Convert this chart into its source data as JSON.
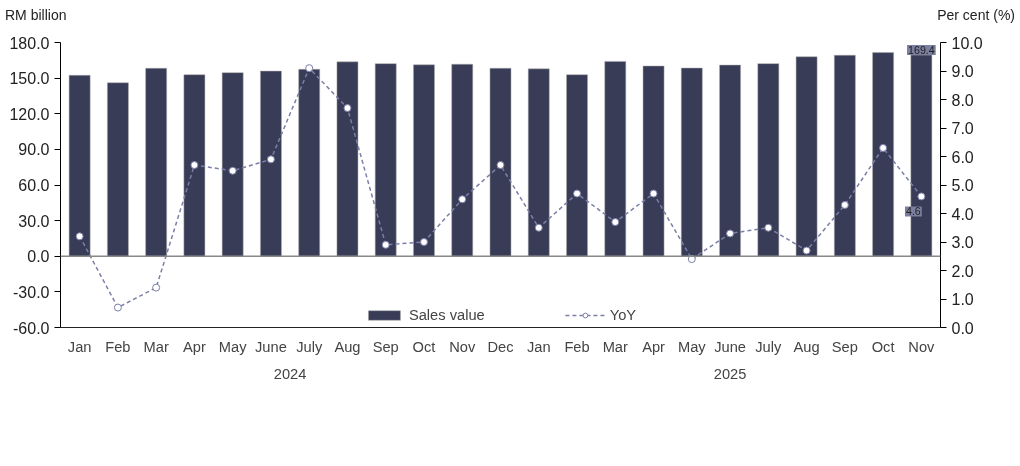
{
  "chart_data": {
    "type": "bar",
    "categories": [
      "Jan",
      "Feb",
      "Mar",
      "Apr",
      "May",
      "June",
      "July",
      "Aug",
      "Sep",
      "Oct",
      "Nov",
      "Dec",
      "Jan",
      "Feb",
      "Mar",
      "Apr",
      "May",
      "June",
      "July",
      "Aug",
      "Sep",
      "Oct",
      "Nov"
    ],
    "series": [
      {
        "name": "Sales value",
        "color": "#393c56",
        "values": [
          152.4,
          146.1,
          158.3,
          152.9,
          154.6,
          155.9,
          157.4,
          163.7,
          162.2,
          161.2,
          161.7,
          158.3,
          157.8,
          152.9,
          164.1,
          160.2,
          158.5,
          161.0,
          162.2,
          168.0,
          169.3,
          171.5,
          169.4
        ],
        "value_labels": [
          null,
          null,
          null,
          null,
          null,
          null,
          null,
          null,
          null,
          null,
          null,
          null,
          null,
          null,
          null,
          null,
          null,
          null,
          null,
          null,
          null,
          null,
          "169.4"
        ]
      },
      {
        "name": "YoY",
        "type": "line",
        "axis": "y2",
        "color": "#7b7fa8",
        "line_style": "dashed",
        "marker": "circle",
        "values": [
          3.2,
          0.7,
          1.4,
          5.7,
          5.5,
          5.9,
          9.1,
          7.7,
          2.9,
          3.0,
          4.5,
          5.7,
          3.5,
          4.7,
          3.7,
          4.7,
          2.4,
          3.3,
          3.5,
          2.7,
          4.3,
          6.3,
          4.6
        ],
        "value_labels": [
          null,
          null,
          null,
          null,
          null,
          null,
          null,
          null,
          null,
          null,
          null,
          null,
          null,
          null,
          null,
          null,
          null,
          null,
          null,
          null,
          null,
          null,
          "4.6"
        ]
      }
    ],
    "ylabel": "RM billion",
    "y2label": "Per cent (%)",
    "ylim": [
      -60,
      180
    ],
    "yticks": [
      {
        "value": -60,
        "label": "-60.0"
      },
      {
        "value": -30,
        "label": "-30.0"
      },
      {
        "value": 0,
        "label": "0.0"
      },
      {
        "value": 30,
        "label": "30.0"
      },
      {
        "value": 60,
        "label": "60.0"
      },
      {
        "value": 90,
        "label": "90.0"
      },
      {
        "value": 120,
        "label": "120.0"
      },
      {
        "value": 150,
        "label": "150.0"
      },
      {
        "value": 180,
        "label": "180.0"
      }
    ],
    "y2lim": [
      0,
      10
    ],
    "y2ticks": [
      {
        "value": 0,
        "label": "0.0"
      },
      {
        "value": 1,
        "label": "1.0"
      },
      {
        "value": 2,
        "label": "2.0"
      },
      {
        "value": 3,
        "label": "3.0"
      },
      {
        "value": 4,
        "label": "4.0"
      },
      {
        "value": 5,
        "label": "5.0"
      },
      {
        "value": 6,
        "label": "6.0"
      },
      {
        "value": 7,
        "label": "7.0"
      },
      {
        "value": 8,
        "label": "8.0"
      },
      {
        "value": 9,
        "label": "9.0"
      },
      {
        "value": 10,
        "label": "10.0"
      }
    ],
    "annotations": [
      "2024",
      "2025"
    ],
    "ref_lines": [
      {
        "axis": "y",
        "value": 0
      }
    ],
    "legend": "bottom"
  }
}
